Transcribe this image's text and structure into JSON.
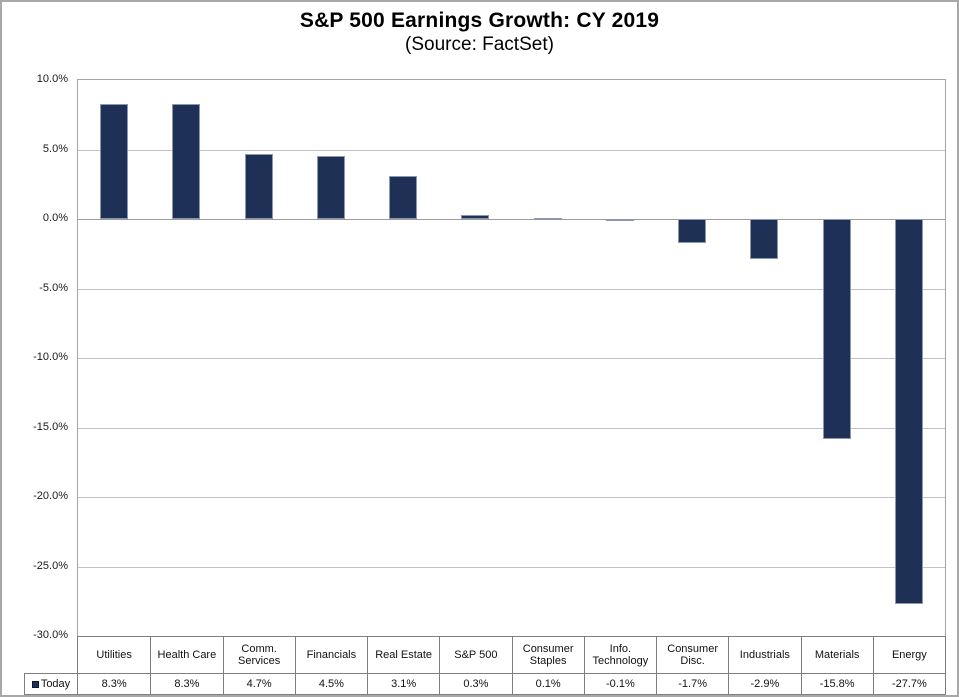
{
  "chart_data": {
    "type": "bar",
    "title": "S&P 500 Earnings Growth: CY 2019",
    "subtitle": "(Source: FactSet)",
    "categories": [
      "Utilities",
      "Health Care",
      "Comm. Services",
      "Financials",
      "Real Estate",
      "S&P 500",
      "Consumer Staples",
      "Info. Technology",
      "Consumer Disc.",
      "Industrials",
      "Materials",
      "Energy"
    ],
    "series": [
      {
        "name": "Today",
        "values": [
          8.3,
          8.3,
          4.7,
          4.5,
          3.1,
          0.3,
          0.1,
          -0.1,
          -1.7,
          -2.9,
          -15.8,
          -27.7
        ]
      }
    ],
    "value_labels": [
      "8.3%",
      "8.3%",
      "4.7%",
      "4.5%",
      "3.1%",
      "0.3%",
      "0.1%",
      "-0.1%",
      "-1.7%",
      "-2.9%",
      "-15.8%",
      "-27.7%"
    ],
    "xlabel": "",
    "ylabel": "",
    "ylim": [
      -30,
      10
    ],
    "ytick_step": 5,
    "ytick_labels": [
      "10.0%",
      "5.0%",
      "0.0%",
      "-5.0%",
      "-10.0%",
      "-15.0%",
      "-20.0%",
      "-25.0%",
      "-30.0%"
    ],
    "grid": true,
    "legend": {
      "label": "Today",
      "position": "bottom-left",
      "marker": "square-icon"
    },
    "colors": {
      "bar_fill": "#1f3056",
      "bar_border": "#8d97ad",
      "gridline": "#c3c3c3",
      "zero_line": "#9c9c9c",
      "plot_border": "#a6a6a6",
      "table_border": "#7f7f7f",
      "frame_border": "#a8a8a8",
      "text": "#000000"
    }
  }
}
